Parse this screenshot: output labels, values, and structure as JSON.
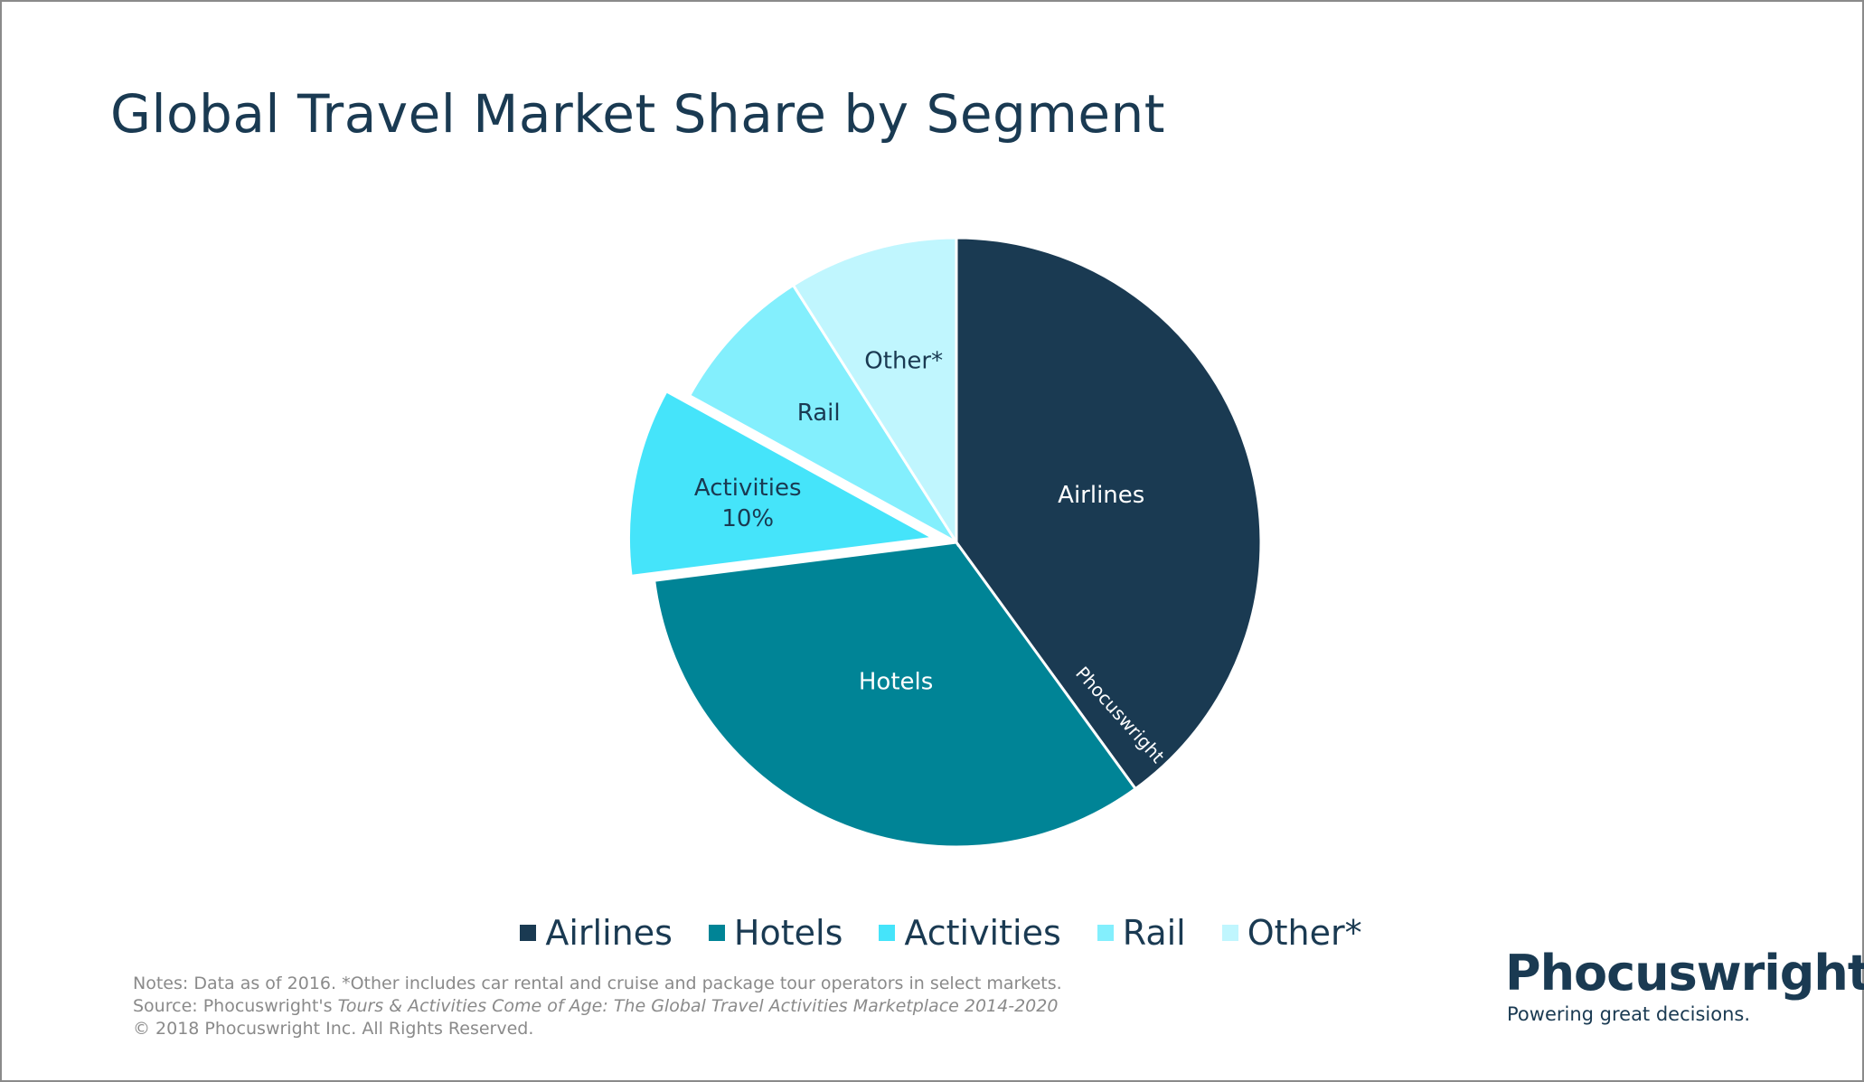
{
  "title": "Global Travel Market Share by Segment",
  "chart_data": {
    "type": "pie",
    "title": "Global Travel Market Share by Segment",
    "slices": [
      {
        "name": "Airlines",
        "value": 40,
        "color": "#1a3a52",
        "label": "Airlines",
        "label_color": "#ffffff"
      },
      {
        "name": "Hotels",
        "value": 33,
        "color": "#008496",
        "label": "Hotels",
        "label_color": "#ffffff"
      },
      {
        "name": "Activities",
        "value": 10,
        "color": "#45e4fa",
        "label": "Activities",
        "value_label": "10%",
        "label_color": "#1a3a52",
        "exploded": true
      },
      {
        "name": "Rail",
        "value": 8,
        "color": "#83effd",
        "label": "Rail",
        "label_color": "#1a3a52"
      },
      {
        "name": "Other*",
        "value": 9,
        "color": "#c0f6fe",
        "label": "Other*",
        "label_color": "#1a3a52"
      }
    ],
    "legend_position": "bottom",
    "start_angle_deg": 0,
    "direction": "clockwise",
    "watermark": "Phocuswright"
  },
  "legend": [
    {
      "label": "Airlines",
      "color": "#1a3a52"
    },
    {
      "label": "Hotels",
      "color": "#008496"
    },
    {
      "label": "Activities",
      "color": "#45e4fa"
    },
    {
      "label": "Rail",
      "color": "#83effd"
    },
    {
      "label": "Other*",
      "color": "#c0f6fe"
    }
  ],
  "notes": {
    "line1": "Notes: Data as of 2016. *Other includes car rental and cruise and package tour operators in select markets.",
    "line2_prefix": "Source: Phocuswright's ",
    "line2_italic": "Tours & Activities Come of Age: The Global Travel Activities Marketplace 2014-2020",
    "line3": "© 2018 Phocuswright Inc. All Rights Reserved."
  },
  "brand": {
    "name": "Phocuswright",
    "tagline": "Powering great decisions.",
    "accent_color": "#45c8f0"
  }
}
